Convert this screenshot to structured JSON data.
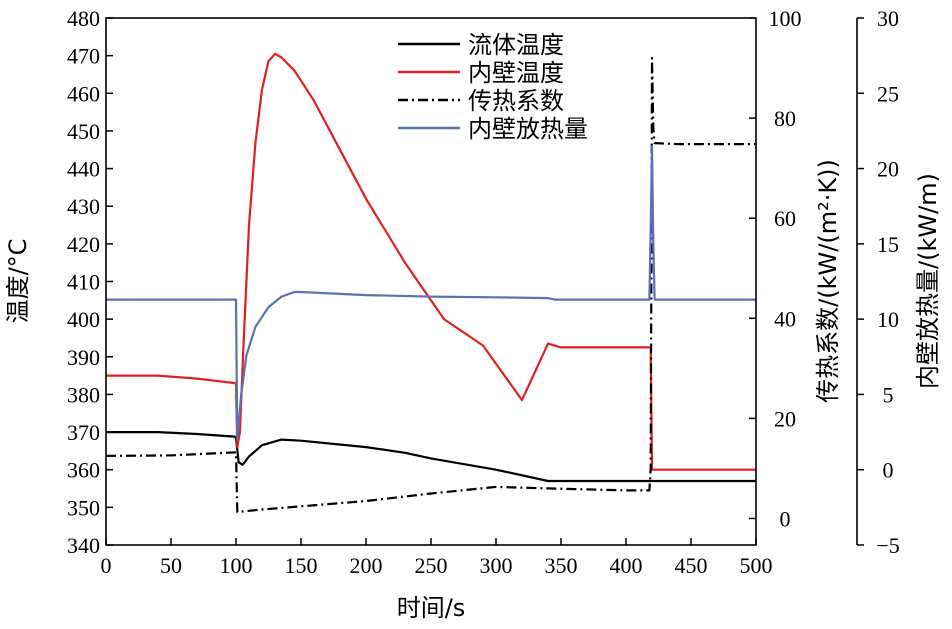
{
  "chart_data": {
    "type": "line",
    "xlabel": "时间/s",
    "y1label": "温度/°C",
    "y2label": "传热系数/(kW/(m²·K))",
    "y3label": "内壁放热量/(kW/m)",
    "x_ticks": [
      "0",
      "50",
      "100",
      "150",
      "200",
      "250",
      "300",
      "350",
      "400",
      "450",
      "500"
    ],
    "y1_ticks": [
      "340",
      "350",
      "360",
      "370",
      "380",
      "390",
      "400",
      "410",
      "420",
      "430",
      "440",
      "450",
      "460",
      "470",
      "480"
    ],
    "y2_ticks": [
      "0",
      "20",
      "40",
      "60",
      "80",
      "100"
    ],
    "y3_ticks": [
      "−5",
      "0",
      "5",
      "10",
      "15",
      "20",
      "25",
      "30"
    ],
    "xlim": [
      0,
      500
    ],
    "y1lim": [
      340,
      480
    ],
    "y2lim": [
      -5.3,
      100
    ],
    "y3lim": [
      -5,
      30
    ],
    "series": [
      {
        "name": "流体温度",
        "axis": "y1",
        "color": "#000000",
        "dash": "",
        "points": [
          [
            0,
            370
          ],
          [
            40,
            370
          ],
          [
            70,
            369.5
          ],
          [
            99,
            368.8
          ],
          [
            100,
            368.5
          ],
          [
            102,
            362
          ],
          [
            105,
            361.3
          ],
          [
            110,
            363.5
          ],
          [
            120,
            366.5
          ],
          [
            135,
            368
          ],
          [
            150,
            367.7
          ],
          [
            200,
            366
          ],
          [
            230,
            364.5
          ],
          [
            250,
            363
          ],
          [
            300,
            360
          ],
          [
            340,
            357
          ],
          [
            400,
            357
          ],
          [
            420,
            357
          ],
          [
            500,
            357
          ]
        ]
      },
      {
        "name": "内壁温度",
        "axis": "y1",
        "color": "#e02020",
        "dash": "",
        "points": [
          [
            0,
            385
          ],
          [
            40,
            385
          ],
          [
            70,
            384.2
          ],
          [
            99,
            383
          ],
          [
            100,
            383
          ],
          [
            101,
            366
          ],
          [
            103,
            370
          ],
          [
            106,
            395
          ],
          [
            110,
            425
          ],
          [
            115,
            447
          ],
          [
            120,
            461
          ],
          [
            125,
            468.5
          ],
          [
            130,
            470.5
          ],
          [
            135,
            469.5
          ],
          [
            145,
            466
          ],
          [
            160,
            458
          ],
          [
            180,
            445
          ],
          [
            200,
            432
          ],
          [
            230,
            415
          ],
          [
            260,
            400
          ],
          [
            290,
            393
          ],
          [
            320,
            378.5
          ],
          [
            340,
            393.5
          ],
          [
            350,
            392.5
          ],
          [
            380,
            392.5
          ],
          [
            418,
            392.5
          ],
          [
            419,
            392.5
          ],
          [
            420,
            360
          ],
          [
            500,
            360
          ]
        ]
      },
      {
        "name": "传热系数",
        "axis": "y2",
        "color": "#000000",
        "dash": "10,4,2,4",
        "points": [
          [
            0,
            12.5
          ],
          [
            50,
            12.6
          ],
          [
            99,
            13.2
          ],
          [
            100,
            13.2
          ],
          [
            101,
            1.3
          ],
          [
            120,
            1.8
          ],
          [
            200,
            3.5
          ],
          [
            250,
            5
          ],
          [
            300,
            6.3
          ],
          [
            340,
            6
          ],
          [
            400,
            5.6
          ],
          [
            418,
            5.6
          ],
          [
            419,
            10
          ],
          [
            420,
            92
          ],
          [
            421,
            78
          ],
          [
            422,
            75
          ],
          [
            440,
            74.8
          ],
          [
            500,
            74.8
          ]
        ]
      },
      {
        "name": "内壁放热量",
        "axis": "y3",
        "color": "#5a72b5",
        "dash": "",
        "points": [
          [
            0,
            11.3
          ],
          [
            40,
            11.3
          ],
          [
            99,
            11.3
          ],
          [
            100,
            11.3
          ],
          [
            101,
            2
          ],
          [
            104,
            5
          ],
          [
            108,
            7.6
          ],
          [
            115,
            9.5
          ],
          [
            125,
            10.8
          ],
          [
            135,
            11.5
          ],
          [
            145,
            11.8
          ],
          [
            150,
            11.8
          ],
          [
            200,
            11.6
          ],
          [
            250,
            11.5
          ],
          [
            300,
            11.45
          ],
          [
            340,
            11.4
          ],
          [
            345,
            11.3
          ],
          [
            400,
            11.3
          ],
          [
            418,
            11.3
          ],
          [
            419,
            16
          ],
          [
            420,
            21.5
          ],
          [
            421,
            15
          ],
          [
            422,
            11.3
          ],
          [
            500,
            11.3
          ]
        ]
      }
    ],
    "legend": {
      "placement": "top-center",
      "entries": [
        {
          "label": "流体温度",
          "color": "#000000",
          "dash": ""
        },
        {
          "label": "内壁温度",
          "color": "#e02020",
          "dash": ""
        },
        {
          "label": "传热系数",
          "color": "#000000",
          "dash": "10,4,2,4"
        },
        {
          "label": "内壁放热量",
          "color": "#5a72b5",
          "dash": ""
        }
      ]
    }
  }
}
